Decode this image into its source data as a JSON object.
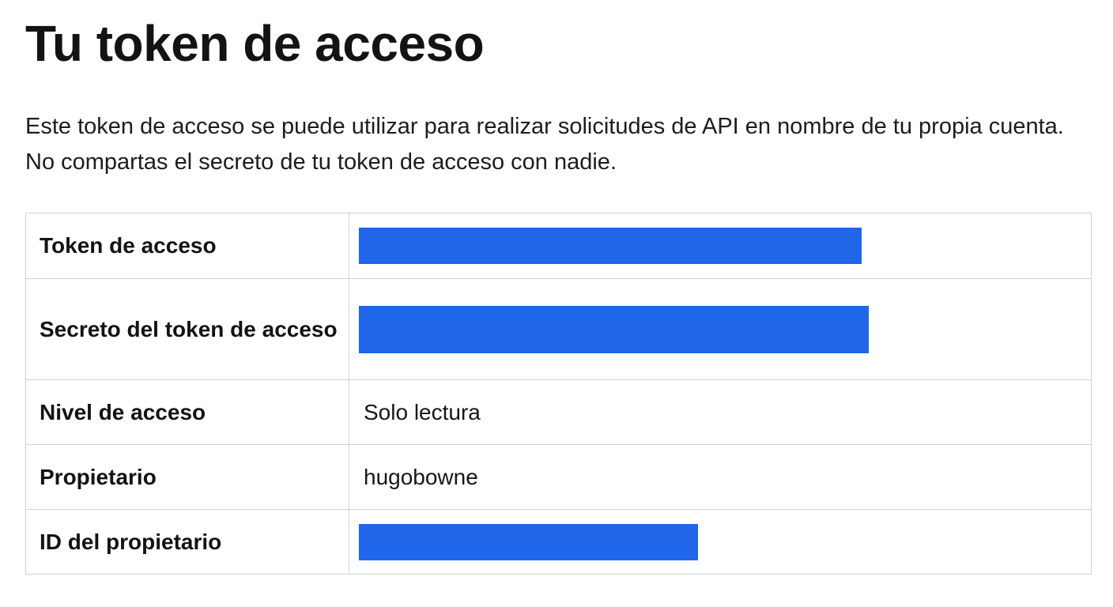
{
  "page": {
    "title": "Tu token de acceso",
    "description": "Este token de acceso se puede utilizar para realizar solicitudes de API en nombre de tu propia cuenta. No compartas el secreto de tu token de acceso con nadie."
  },
  "colors": {
    "redaction": "#1f66e8",
    "border": "#cfd3d7",
    "text": "#14171a"
  },
  "table": {
    "rows": [
      {
        "label": "Token de acceso",
        "redacted": true
      },
      {
        "label": "Secreto del token de acceso",
        "redacted": true
      },
      {
        "label": "Nivel de acceso",
        "value": "Solo lectura"
      },
      {
        "label": "Propietario",
        "value": "hugobowne"
      },
      {
        "label": "ID del propietario",
        "redacted": true
      }
    ]
  }
}
